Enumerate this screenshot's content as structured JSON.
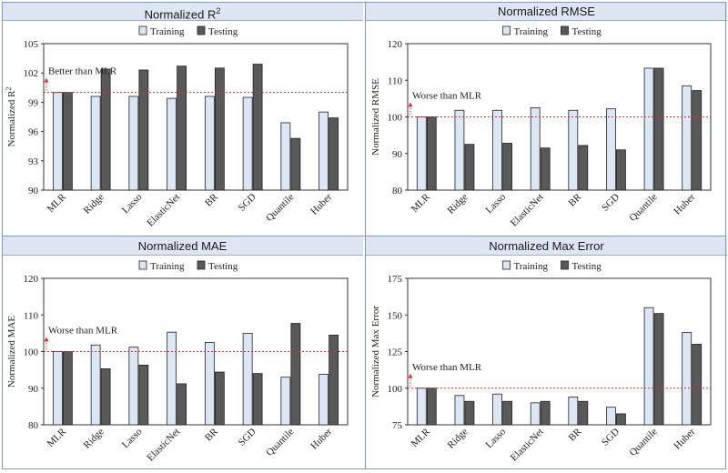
{
  "colors": {
    "training": "#dce6f4",
    "testing": "#595959",
    "ref_line": "#e0302a",
    "axis": "#333333"
  },
  "chart_data": [
    {
      "type": "bar",
      "title": "Normalized R²",
      "title_base": "Normalized R",
      "title_sup": "2",
      "ylabel": "Normalized R²",
      "ylabel_base": "Normalized R",
      "ylabel_sup": "2",
      "ylim": [
        90,
        105
      ],
      "yticks": [
        90,
        93,
        96,
        99,
        102,
        105
      ],
      "reference": 100,
      "annotation": "Better than MLR",
      "annotation_direction": "up",
      "categories": [
        "MLR",
        "Ridge",
        "Lasso",
        "ElasticNet",
        "BR",
        "SGD",
        "Quantile",
        "Huber"
      ],
      "series": [
        {
          "name": "Training",
          "values": [
            100,
            99.6,
            99.6,
            99.4,
            99.6,
            99.5,
            96.9,
            98.0
          ]
        },
        {
          "name": "Testing",
          "values": [
            100,
            102.4,
            102.3,
            102.7,
            102.5,
            102.9,
            95.3,
            97.4
          ]
        }
      ],
      "grid": false,
      "legend": "top-center"
    },
    {
      "type": "bar",
      "title": "Normalized RMSE",
      "ylabel": "Normalized RMSE",
      "ylim": [
        80,
        120
      ],
      "yticks": [
        80,
        90,
        100,
        110,
        120
      ],
      "reference": 100,
      "annotation": "Worse than MLR",
      "annotation_direction": "up",
      "categories": [
        "MLR",
        "Ridge",
        "Lasso",
        "ElasticNet",
        "BR",
        "SGD",
        "Quantile",
        "Huber"
      ],
      "series": [
        {
          "name": "Training",
          "values": [
            100,
            101.8,
            101.8,
            102.5,
            101.8,
            102.2,
            113.3,
            108.5
          ]
        },
        {
          "name": "Testing",
          "values": [
            100,
            92.5,
            92.8,
            91.5,
            92.2,
            91.0,
            113.3,
            107.2
          ]
        }
      ],
      "grid": false,
      "legend": "top-center"
    },
    {
      "type": "bar",
      "title": "Normalized MAE",
      "ylabel": "Normalized MAE",
      "ylim": [
        80,
        120
      ],
      "yticks": [
        80,
        90,
        100,
        110,
        120
      ],
      "reference": 100,
      "annotation": "Worse than MLR",
      "annotation_direction": "up",
      "categories": [
        "MLR",
        "Ridge",
        "Lasso",
        "ElasticNet",
        "BR",
        "SGD",
        "Quantile",
        "Huber"
      ],
      "series": [
        {
          "name": "Training",
          "values": [
            100,
            101.8,
            101.2,
            105.3,
            102.5,
            105.0,
            93.0,
            93.8
          ]
        },
        {
          "name": "Testing",
          "values": [
            100,
            95.3,
            96.3,
            91.2,
            94.4,
            94.0,
            107.7,
            104.5
          ]
        }
      ],
      "grid": false,
      "legend": "top-center"
    },
    {
      "type": "bar",
      "title": "Normalized Max Error",
      "ylabel": "Normalized Max Error",
      "ylim": [
        75,
        175
      ],
      "yticks": [
        75,
        100,
        125,
        150,
        175
      ],
      "reference": 100,
      "annotation": "Worse than MLR",
      "annotation_direction": "up",
      "categories": [
        "MLR",
        "Ridge",
        "Lasso",
        "ElasticNet",
        "BR",
        "SGD",
        "Quantile",
        "Huber"
      ],
      "series": [
        {
          "name": "Training",
          "values": [
            100,
            95.0,
            96.0,
            90.0,
            94.0,
            87.0,
            155.0,
            138.0
          ]
        },
        {
          "name": "Testing",
          "values": [
            100,
            91.0,
            91.0,
            91.0,
            91.0,
            82.5,
            151.0,
            130.0
          ]
        }
      ],
      "grid": false,
      "legend": "top-center"
    }
  ]
}
